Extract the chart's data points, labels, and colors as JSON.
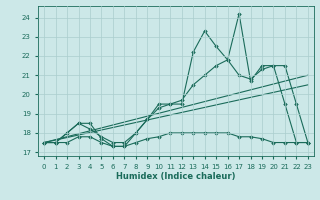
{
  "title": "",
  "xlabel": "Humidex (Indice chaleur)",
  "background_color": "#cce8e8",
  "line_color": "#1a6b5a",
  "grid_color": "#aacece",
  "xlim": [
    -0.5,
    23.5
  ],
  "ylim": [
    16.8,
    24.6
  ],
  "yticks": [
    17,
    18,
    19,
    20,
    21,
    22,
    23,
    24
  ],
  "xticks": [
    0,
    1,
    2,
    3,
    4,
    5,
    6,
    7,
    8,
    9,
    10,
    11,
    12,
    13,
    14,
    15,
    16,
    17,
    18,
    19,
    20,
    21,
    22,
    23
  ],
  "series": [
    {
      "x": [
        0,
        1,
        2,
        3,
        4,
        5,
        6,
        7,
        8,
        9,
        10,
        11,
        12,
        13,
        14,
        15,
        16,
        17,
        18,
        19,
        20,
        21,
        22,
        23
      ],
      "y": [
        17.5,
        17.5,
        18.0,
        18.5,
        18.5,
        17.7,
        17.3,
        17.3,
        18.0,
        18.7,
        19.5,
        19.5,
        19.5,
        22.2,
        23.3,
        22.5,
        21.8,
        24.2,
        20.7,
        21.5,
        21.5,
        19.5,
        17.5,
        17.5
      ]
    },
    {
      "x": [
        0,
        1,
        2,
        3,
        4,
        5,
        6,
        7,
        8,
        9,
        10,
        11,
        12,
        13,
        14,
        15,
        16,
        17,
        18,
        19,
        20,
        21,
        22,
        23
      ],
      "y": [
        17.5,
        17.5,
        18.0,
        18.5,
        18.2,
        17.8,
        17.5,
        17.5,
        18.0,
        18.7,
        19.3,
        19.5,
        19.7,
        20.5,
        21.0,
        21.5,
        21.8,
        21.0,
        20.8,
        21.3,
        21.5,
        21.5,
        19.5,
        17.5
      ]
    },
    {
      "x": [
        0,
        1,
        2,
        3,
        4,
        5,
        6,
        7,
        8,
        9,
        10,
        11,
        12,
        13,
        14,
        15,
        16,
        17,
        18,
        19,
        20,
        21,
        22,
        23
      ],
      "y": [
        17.5,
        17.5,
        17.5,
        17.8,
        17.8,
        17.5,
        17.3,
        17.3,
        17.5,
        17.7,
        17.8,
        18.0,
        18.0,
        18.0,
        18.0,
        18.0,
        18.0,
        17.8,
        17.8,
        17.7,
        17.5,
        17.5,
        17.5,
        17.5
      ]
    }
  ],
  "trend_lines": [
    {
      "x": [
        0,
        23
      ],
      "y": [
        17.5,
        21.0
      ]
    },
    {
      "x": [
        0,
        23
      ],
      "y": [
        17.5,
        20.5
      ]
    }
  ]
}
